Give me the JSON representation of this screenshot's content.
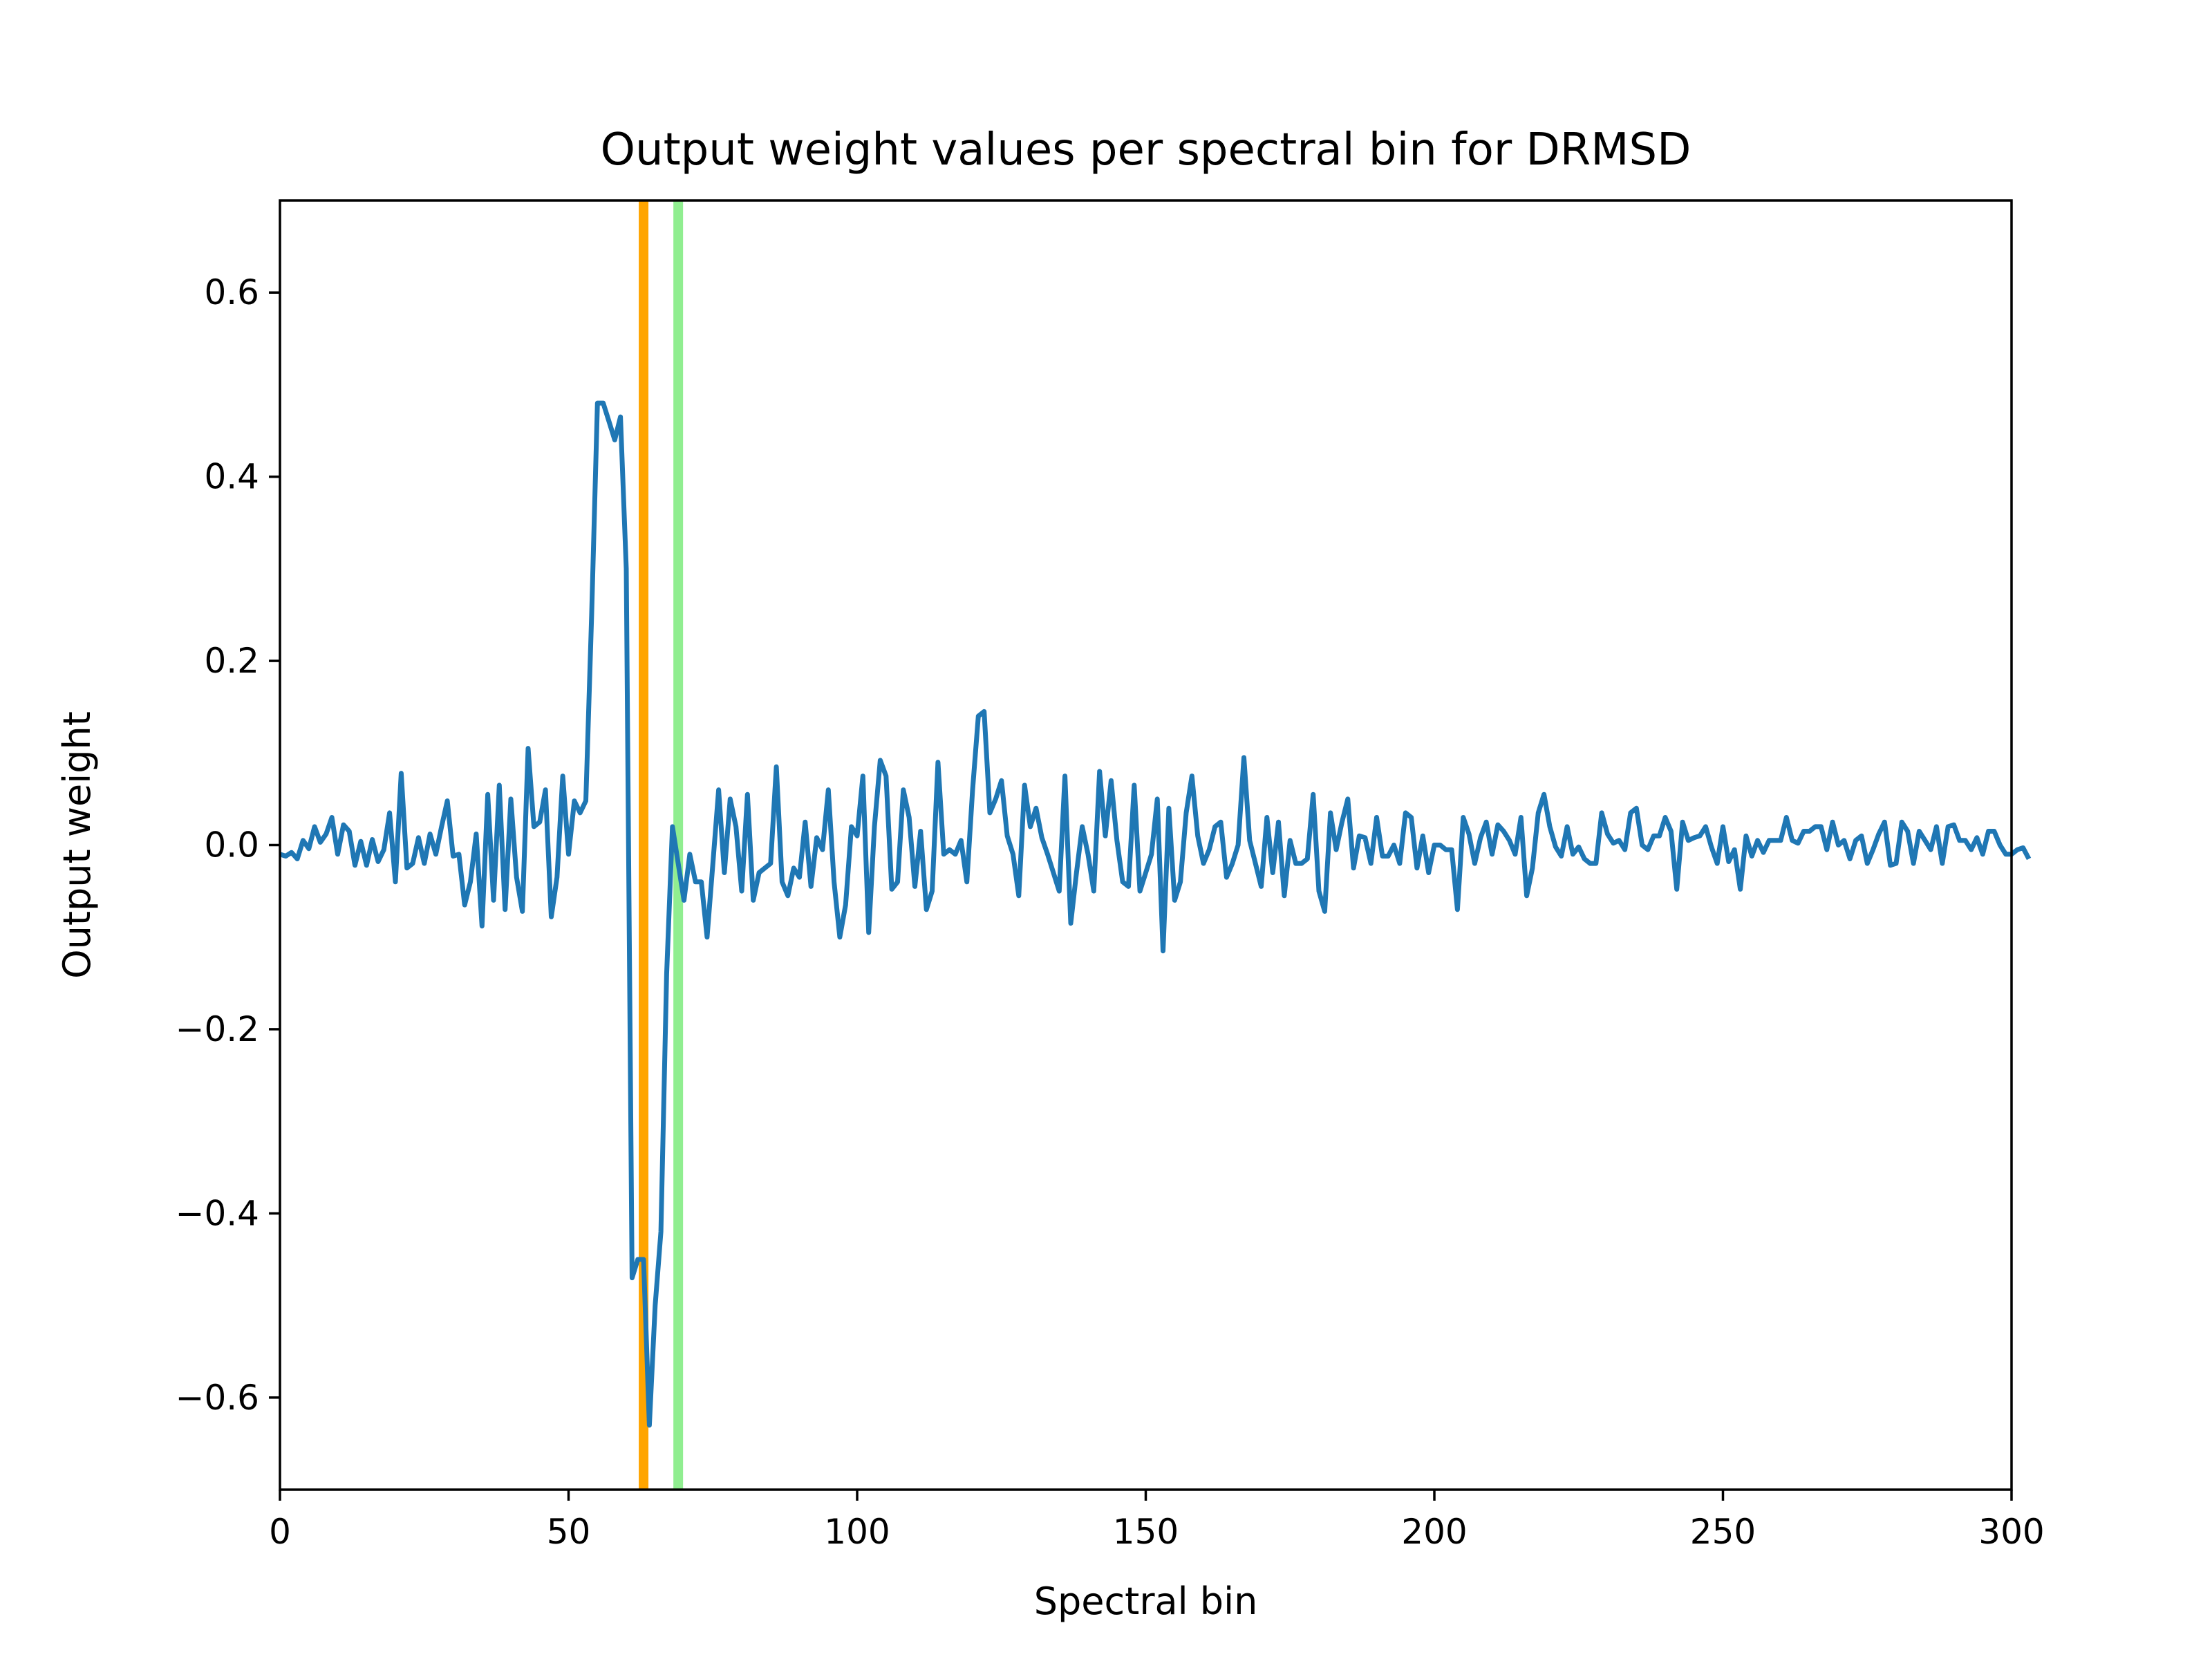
{
  "chart_data": {
    "type": "line",
    "title": "Output weight values per spectral bin for DRMSD",
    "xlabel": "Spectral bin",
    "ylabel": "Output weight",
    "xlim": [
      0,
      300
    ],
    "ylim": [
      -0.7,
      0.7
    ],
    "x_ticks": [
      0,
      50,
      100,
      150,
      200,
      250,
      300
    ],
    "x_tick_labels": [
      "0",
      "50",
      "100",
      "150",
      "200",
      "250",
      "300"
    ],
    "y_ticks": [
      0.6,
      0.4,
      0.2,
      0.0,
      -0.2,
      -0.4,
      -0.6
    ],
    "y_tick_labels": [
      "0.6",
      "0.4",
      "0.2",
      "0.0",
      "−0.2",
      "−0.4",
      "−0.6"
    ],
    "grid": false,
    "vertical_lines": [
      {
        "x": 63,
        "color": "#ffa500"
      },
      {
        "x": 69,
        "color": "#90ee90"
      }
    ],
    "series": [
      {
        "color": "#1f77b4",
        "values": [
          -0.01,
          -0.012,
          -0.008,
          -0.015,
          0.005,
          -0.004,
          0.02,
          0.003,
          0.012,
          0.03,
          -0.01,
          0.022,
          0.015,
          -0.022,
          0.004,
          -0.022,
          0.006,
          -0.018,
          -0.005,
          0.035,
          -0.04,
          0.078,
          -0.025,
          -0.02,
          0.008,
          -0.02,
          0.012,
          -0.01,
          0.02,
          0.048,
          -0.012,
          -0.01,
          -0.065,
          -0.04,
          0.012,
          -0.088,
          0.055,
          -0.06,
          0.065,
          -0.07,
          0.05,
          -0.035,
          -0.072,
          0.105,
          0.02,
          0.025,
          0.06,
          -0.078,
          -0.035,
          0.075,
          -0.01,
          0.048,
          0.035,
          0.048,
          0.25,
          0.48,
          0.48,
          0.46,
          0.44,
          0.465,
          0.3,
          -0.47,
          -0.45,
          -0.45,
          -0.63,
          -0.5,
          -0.42,
          -0.14,
          0.02,
          -0.02,
          -0.06,
          -0.01,
          -0.04,
          -0.04,
          -0.1,
          -0.02,
          0.06,
          -0.03,
          0.05,
          0.02,
          -0.05,
          0.055,
          -0.06,
          -0.03,
          -0.025,
          -0.02,
          0.085,
          -0.04,
          -0.055,
          -0.025,
          -0.035,
          0.025,
          -0.045,
          0.008,
          -0.005,
          0.06,
          -0.04,
          -0.1,
          -0.065,
          0.02,
          0.01,
          0.075,
          -0.095,
          0.02,
          0.092,
          0.075,
          -0.048,
          -0.04,
          0.06,
          0.03,
          -0.045,
          0.015,
          -0.07,
          -0.05,
          0.09,
          -0.01,
          -0.005,
          -0.01,
          0.005,
          -0.04,
          0.06,
          0.14,
          0.145,
          0.035,
          0.05,
          0.07,
          0.01,
          -0.01,
          -0.055,
          0.065,
          0.02,
          0.04,
          0.008,
          -0.01,
          -0.03,
          -0.05,
          0.075,
          -0.085,
          -0.03,
          0.02,
          -0.01,
          -0.05,
          0.08,
          0.01,
          0.07,
          0.005,
          -0.04,
          -0.045,
          0.065,
          -0.05,
          -0.03,
          -0.01,
          0.05,
          -0.115,
          0.04,
          -0.06,
          -0.04,
          0.035,
          0.075,
          0.01,
          -0.02,
          -0.005,
          0.02,
          0.025,
          -0.035,
          -0.02,
          0.0,
          0.095,
          0.005,
          -0.02,
          -0.045,
          0.03,
          -0.03,
          0.025,
          -0.055,
          0.005,
          -0.02,
          -0.02,
          -0.015,
          0.055,
          -0.05,
          -0.072,
          0.035,
          -0.005,
          0.025,
          0.05,
          -0.025,
          0.01,
          0.008,
          -0.02,
          0.03,
          -0.012,
          -0.012,
          0.0,
          -0.02,
          0.035,
          0.03,
          -0.025,
          0.01,
          -0.03,
          0.0,
          0.0,
          -0.005,
          -0.005,
          -0.07,
          0.03,
          0.012,
          -0.02,
          0.008,
          0.025,
          -0.01,
          0.022,
          0.015,
          0.005,
          -0.01,
          0.03,
          -0.055,
          -0.025,
          0.035,
          0.055,
          0.02,
          -0.002,
          -0.012,
          0.02,
          -0.01,
          -0.002,
          -0.015,
          -0.02,
          -0.02,
          0.035,
          0.012,
          0.002,
          0.005,
          -0.005,
          0.035,
          0.04,
          0.0,
          -0.005,
          0.01,
          0.01,
          0.03,
          0.015,
          -0.048,
          0.025,
          0.005,
          0.008,
          0.01,
          0.02,
          -0.002,
          -0.02,
          0.02,
          -0.018,
          -0.005,
          -0.048,
          0.01,
          -0.012,
          0.005,
          -0.008,
          0.005,
          0.005,
          0.005,
          0.03,
          0.005,
          0.002,
          0.015,
          0.015,
          0.02,
          0.02,
          -0.005,
          0.025,
          0.0,
          0.005,
          -0.015,
          0.005,
          0.01,
          -0.02,
          -0.005,
          0.012,
          0.025,
          -0.022,
          -0.02,
          0.025,
          0.015,
          -0.02,
          0.015,
          0.005,
          -0.005,
          0.02,
          -0.02,
          0.02,
          0.022,
          0.005,
          0.005,
          -0.005,
          0.008,
          -0.01,
          0.015,
          0.015,
          0.0,
          -0.01,
          -0.01,
          -0.005,
          -0.003,
          -0.015
        ]
      }
    ]
  }
}
